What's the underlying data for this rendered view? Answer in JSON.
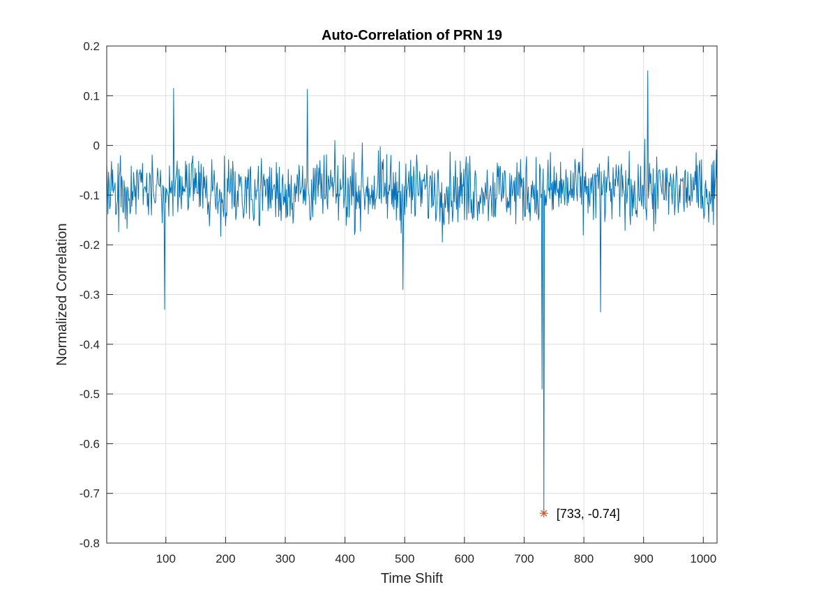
{
  "chart_data": {
    "type": "line",
    "title": "Auto-Correlation of PRN 19",
    "xlabel": "Time Shift",
    "ylabel": "Normalized Correlation",
    "xlim": [
      1,
      1023
    ],
    "ylim": [
      -0.8,
      0.2
    ],
    "grid": true,
    "xticks": [
      100,
      200,
      300,
      400,
      500,
      600,
      700,
      800,
      900,
      1000
    ],
    "xtick_labels": [
      "100",
      "200",
      "300",
      "400",
      "500",
      "600",
      "700",
      "800",
      "900",
      "1000"
    ],
    "yticks": [
      0.2,
      0.1,
      0,
      -0.1,
      -0.2,
      -0.3,
      -0.4,
      -0.5,
      -0.6,
      -0.7,
      -0.8
    ],
    "ytick_labels": [
      "0.2",
      "0.1",
      "0",
      "-0.1",
      "-0.2",
      "-0.3",
      "-0.4",
      "-0.5",
      "-0.6",
      "-0.7",
      "-0.8"
    ],
    "series": [
      {
        "color": "#0072BD",
        "x_range": [
          1,
          1023
        ],
        "baseline": -0.09,
        "spread": 0.09,
        "min_typical": -0.34,
        "max_typical": 0.15,
        "notable_points": [
          {
            "x": 98,
            "y": -0.33
          },
          {
            "x": 113,
            "y": 0.115
          },
          {
            "x": 337,
            "y": 0.113
          },
          {
            "x": 497,
            "y": -0.29
          },
          {
            "x": 730,
            "y": -0.49
          },
          {
            "x": 733,
            "y": -0.74
          },
          {
            "x": 828,
            "y": -0.335
          },
          {
            "x": 907,
            "y": 0.15
          }
        ]
      }
    ],
    "marker": {
      "x": 733,
      "y": -0.74,
      "color": "#D95319",
      "symbol": "asterisk"
    },
    "annotation": {
      "text": "[733, -0.74]",
      "x": 733,
      "y": -0.74
    }
  }
}
